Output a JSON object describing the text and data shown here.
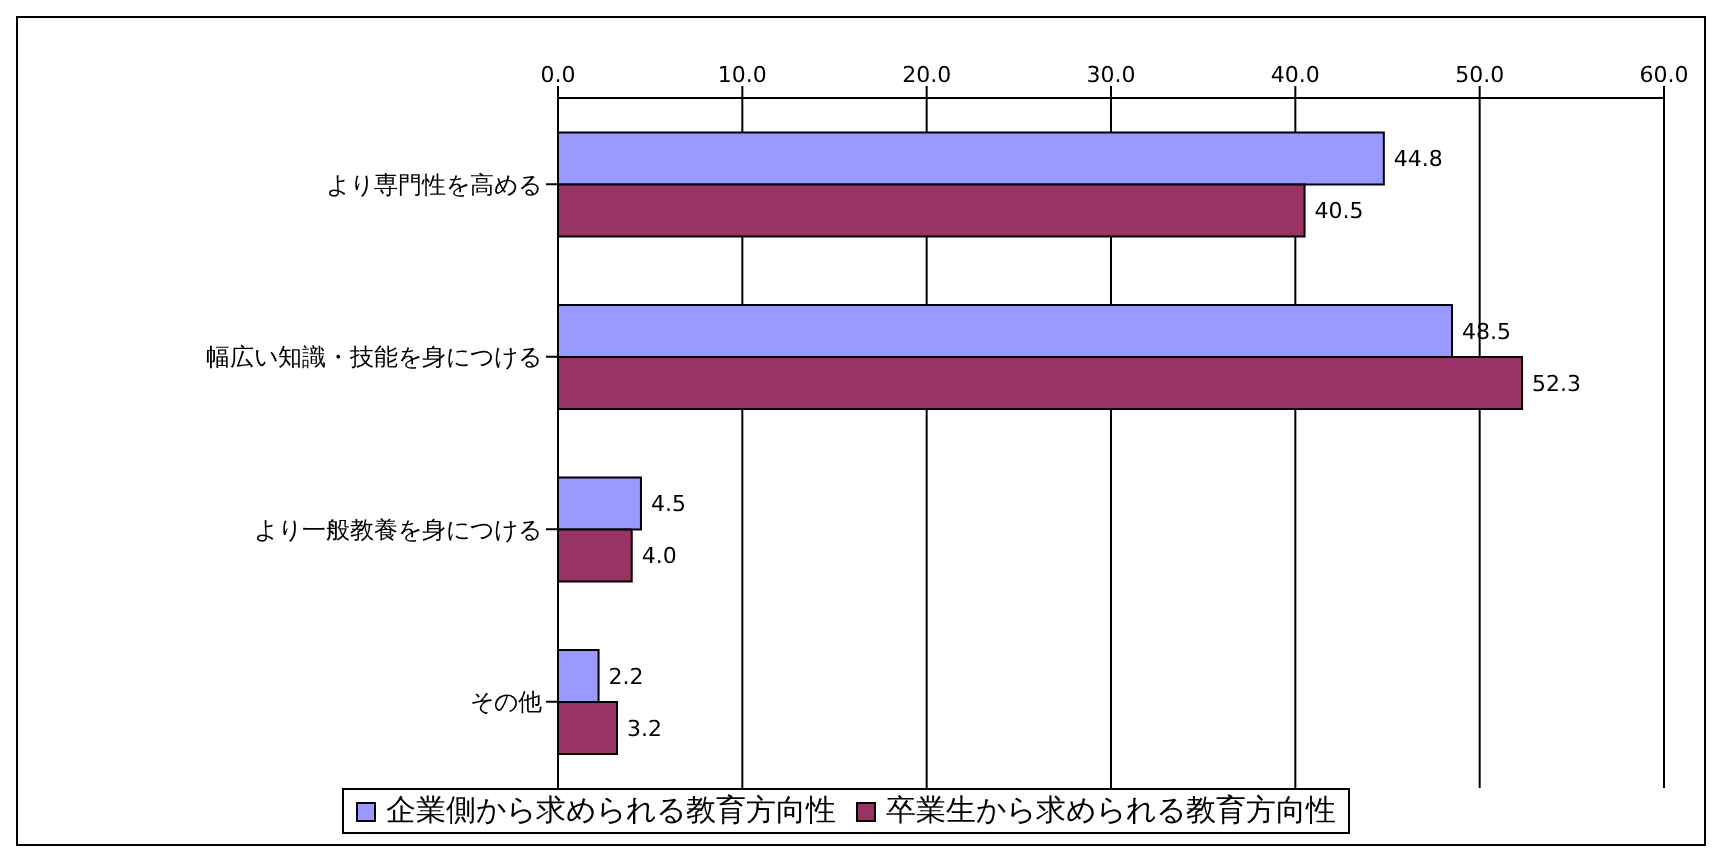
{
  "chart_data": {
    "type": "bar",
    "orientation": "horizontal",
    "categories": [
      "より専門性を高める",
      "幅広い知識・技能を身につける",
      "より一般教養を身につける",
      "その他"
    ],
    "series": [
      {
        "name": "企業側から求められる教育方向性",
        "color": "#9999ff",
        "values": [
          44.8,
          48.5,
          4.5,
          2.2
        ],
        "value_labels": [
          "44.8",
          "48.5",
          "4.5",
          "2.2"
        ]
      },
      {
        "name": "卒業生から求められる教育方向性",
        "color": "#993366",
        "values": [
          40.5,
          52.3,
          4.0,
          3.2
        ],
        "value_labels": [
          "40.5",
          "52.3",
          "4.0",
          "3.2"
        ]
      }
    ],
    "xlim": [
      0,
      60
    ],
    "xticks": [
      {
        "value": 0,
        "label": "0.0"
      },
      {
        "value": 10,
        "label": "10.0"
      },
      {
        "value": 20,
        "label": "20.0"
      },
      {
        "value": 30,
        "label": "30.0"
      },
      {
        "value": 40,
        "label": "40.0"
      },
      {
        "value": 50,
        "label": "50.0"
      },
      {
        "value": 60,
        "label": "60.0"
      }
    ],
    "grid": "x",
    "legend": "bottom"
  }
}
